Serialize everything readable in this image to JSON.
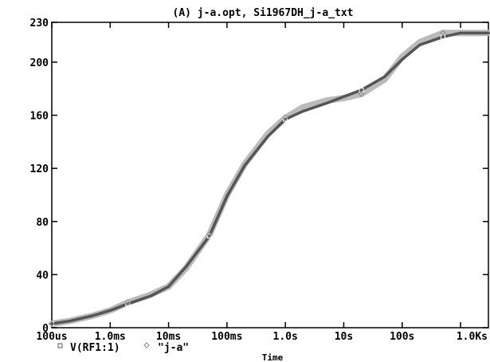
{
  "chart_data": {
    "type": "line",
    "title": "(A) j-a.opt, Si1967DH_j-a_txt",
    "xlabel": "Time",
    "ylabel": "",
    "x_scale": "log",
    "x_range_seconds": [
      0.0001,
      3000
    ],
    "ylim": [
      0,
      230
    ],
    "x_ticks": [
      {
        "value": 0.0001,
        "label": "100us"
      },
      {
        "value": 0.001,
        "label": "1.0ms"
      },
      {
        "value": 0.01,
        "label": "10ms"
      },
      {
        "value": 0.1,
        "label": "100ms"
      },
      {
        "value": 1,
        "label": "1.0s"
      },
      {
        "value": 10,
        "label": "10s"
      },
      {
        "value": 100,
        "label": "100s"
      },
      {
        "value": 1000,
        "label": "1.0Ks"
      }
    ],
    "y_ticks": [
      {
        "value": 0,
        "label": "0"
      },
      {
        "value": 40,
        "label": "40"
      },
      {
        "value": 80,
        "label": "80"
      },
      {
        "value": 120,
        "label": "120"
      },
      {
        "value": 160,
        "label": "160"
      },
      {
        "value": 200,
        "label": "200"
      },
      {
        "value": 230,
        "label": "230"
      }
    ],
    "grid": false,
    "legend_position": "bottom-left",
    "series": [
      {
        "name": "V(RF1:1)",
        "marker": "square",
        "color": "#555555",
        "x": [
          0.0001,
          0.0002,
          0.0005,
          0.001,
          0.002,
          0.005,
          0.01,
          0.02,
          0.05,
          0.1,
          0.2,
          0.5,
          1,
          2,
          5,
          10,
          20,
          50,
          100,
          200,
          500,
          1000,
          3000
        ],
        "y": [
          3,
          5,
          9,
          13,
          18,
          24,
          31,
          46,
          69,
          99,
          122,
          144,
          157,
          163,
          169,
          174,
          179,
          189,
          202,
          213,
          219,
          222,
          222
        ]
      },
      {
        "name": "\"j-a\"",
        "marker": "diamond",
        "color": "#bbbbbb",
        "x": [
          0.0001,
          0.0002,
          0.0005,
          0.001,
          0.002,
          0.005,
          0.01,
          0.02,
          0.05,
          0.1,
          0.2,
          0.5,
          1,
          2,
          5,
          10,
          20,
          50,
          100,
          200,
          500,
          1000,
          3000
        ],
        "y": [
          3,
          5,
          9,
          13,
          19,
          25,
          31,
          45,
          70,
          100,
          123,
          146,
          158,
          166,
          171,
          173,
          176,
          187,
          204,
          215,
          222,
          222,
          222
        ]
      }
    ]
  }
}
